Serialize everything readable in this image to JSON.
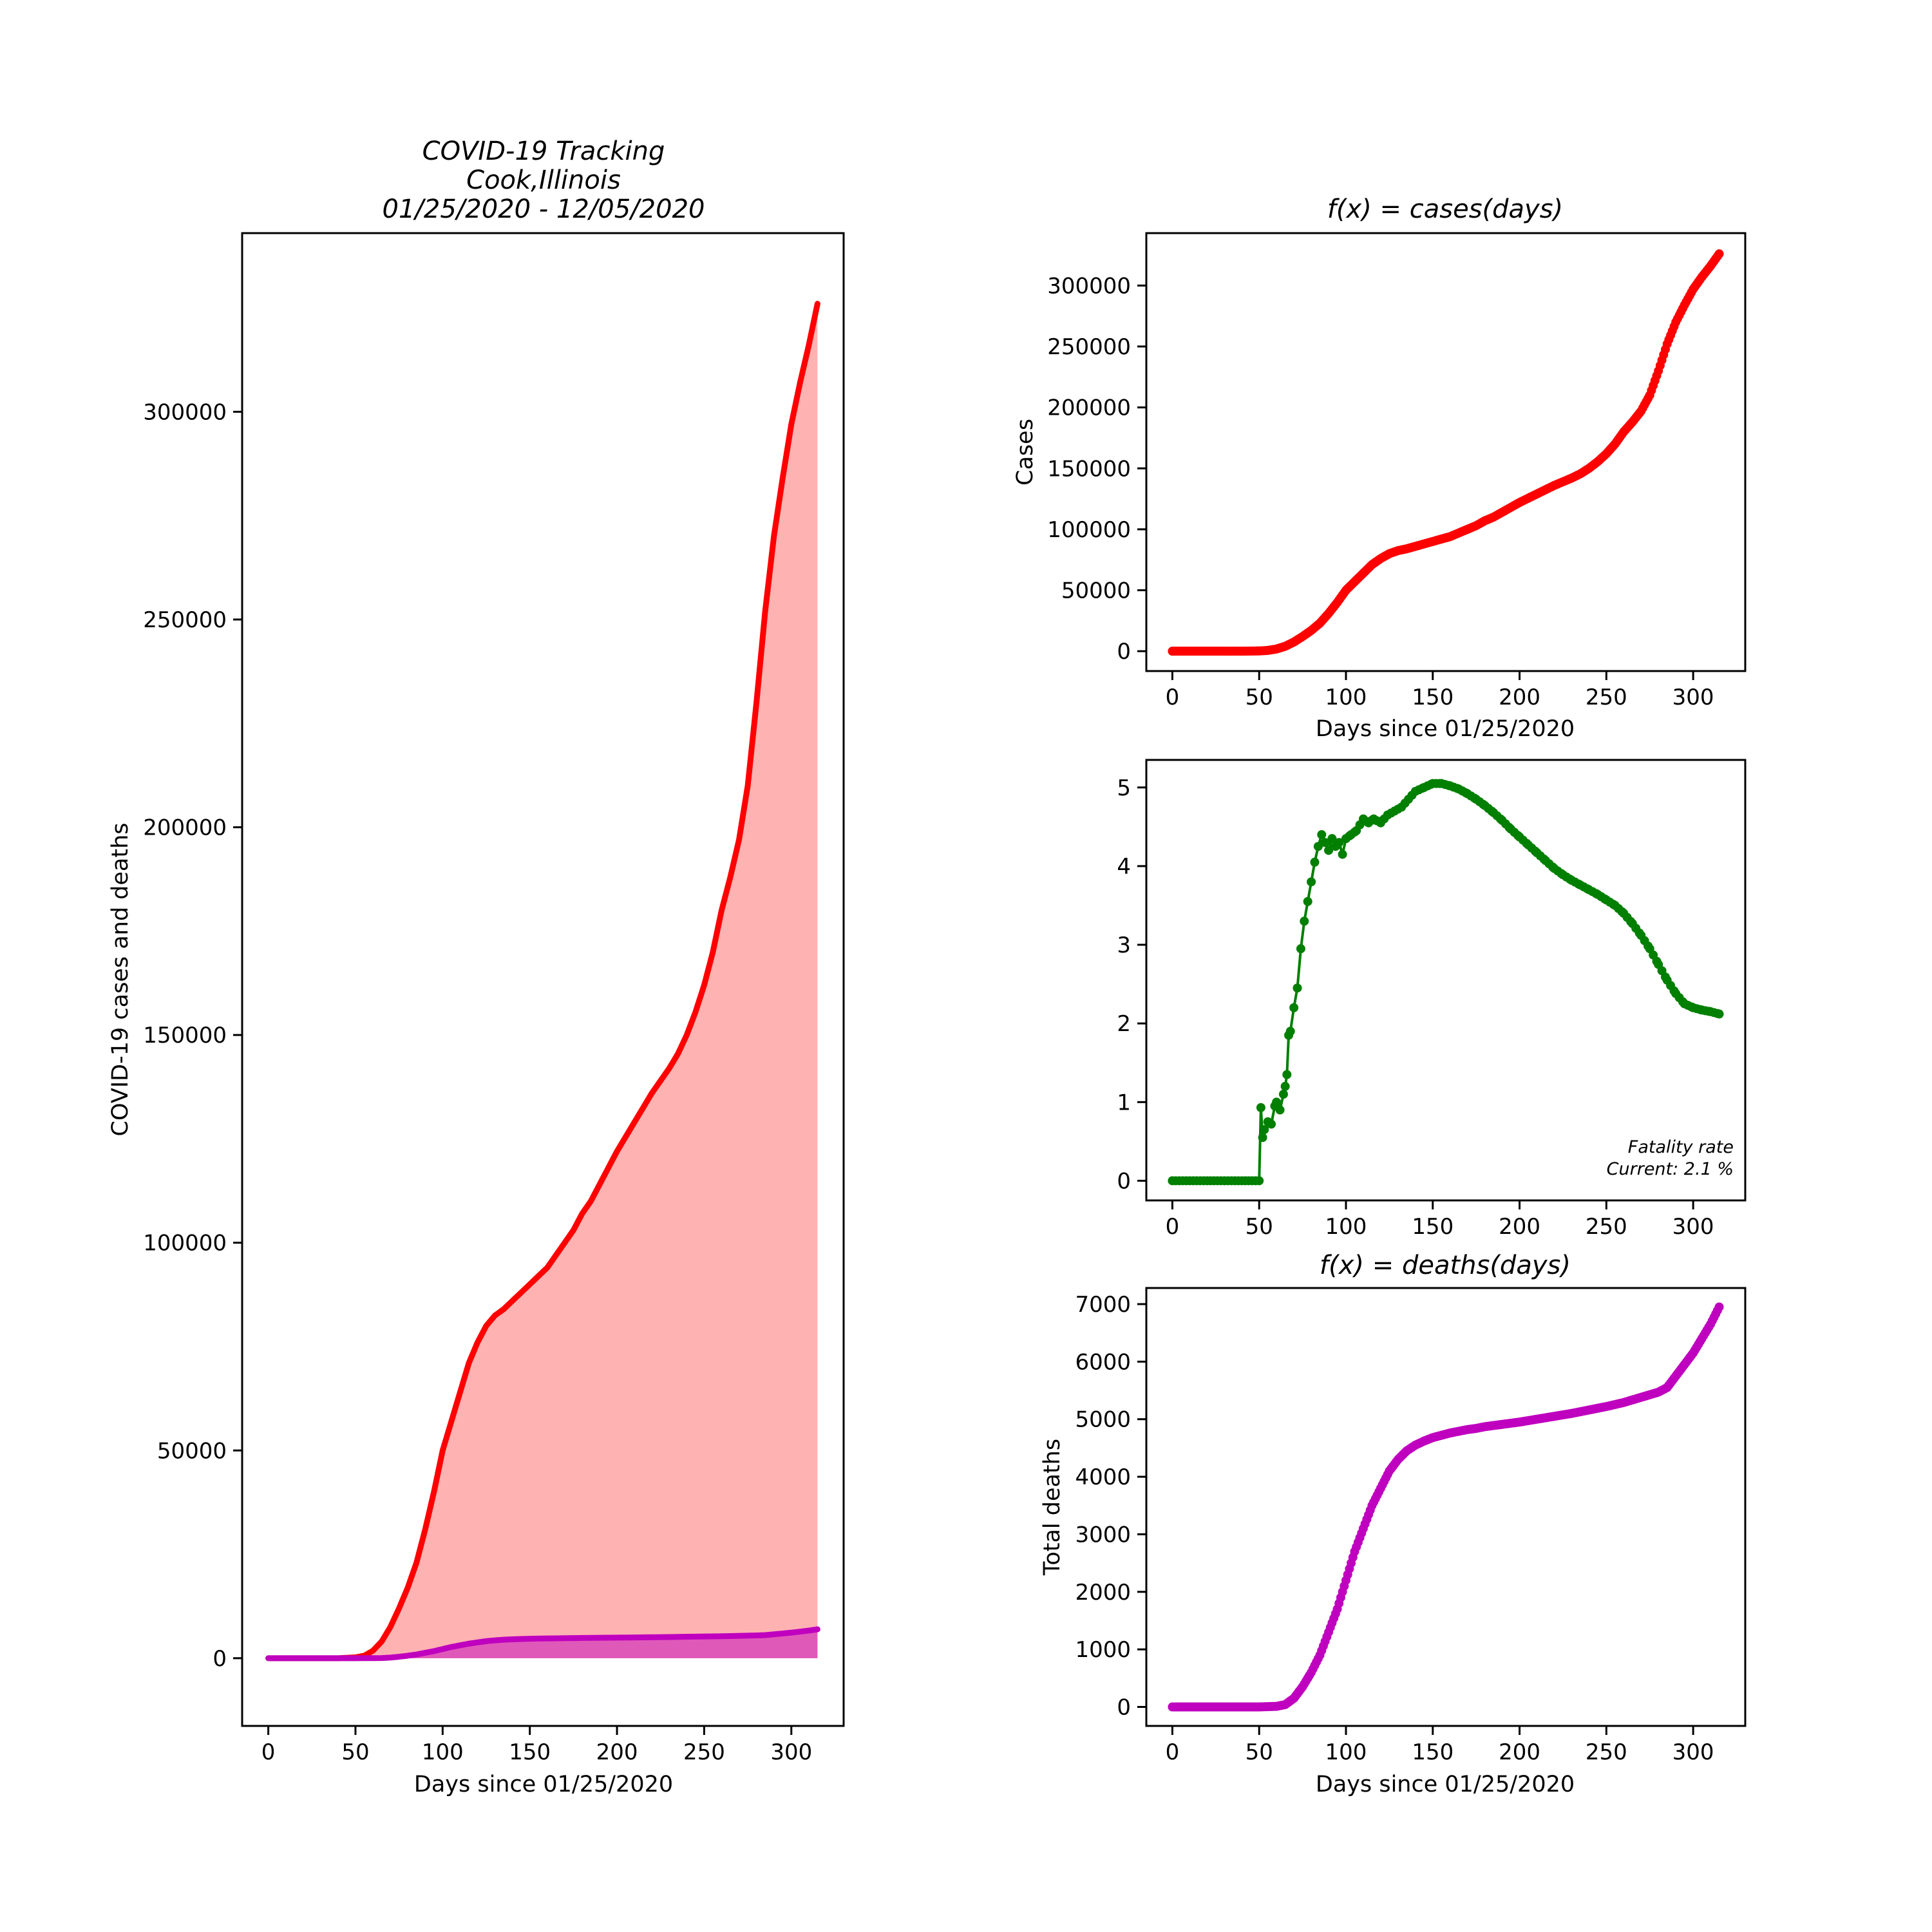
{
  "colors": {
    "cases": "#ff0000",
    "cases_fill": "#ff7f7f",
    "deaths": "#bf00bf",
    "deaths_fill": "#bf00bf",
    "fatality": "#007f00",
    "axes": "#000000",
    "background": "#ffffff"
  },
  "chart_data": [
    {
      "type": "area",
      "title_lines": [
        "COVID-19 Tracking",
        "Cook,Illinois",
        "01/25/2020 - 12/05/2020"
      ],
      "xlabel": "Days since 01/25/2020",
      "ylabel": "COVID-19 cases and deaths",
      "xlim": [
        -15,
        330
      ],
      "ylim": [
        -16300,
        343000
      ],
      "xticks": [
        0,
        50,
        100,
        150,
        200,
        250,
        300
      ],
      "yticks": [
        0,
        50000,
        100000,
        150000,
        200000,
        250000,
        300000
      ],
      "grid": false,
      "series": [
        {
          "key": "cases",
          "x": [
            0,
            40,
            50,
            55,
            60,
            65,
            70,
            75,
            80,
            85,
            90,
            95,
            100,
            105,
            110,
            115,
            120,
            125,
            130,
            135,
            140,
            145,
            150,
            155,
            160,
            165,
            170,
            175,
            180,
            185,
            190,
            195,
            200,
            205,
            210,
            215,
            220,
            225,
            230,
            235,
            240,
            245,
            250,
            255,
            260,
            265,
            270,
            275,
            280,
            285,
            290,
            295,
            300,
            305,
            310,
            315
          ],
          "values": [
            0,
            0,
            200,
            600,
            1800,
            4000,
            7500,
            12000,
            17000,
            23000,
            31000,
            40000,
            50000,
            57000,
            64000,
            71000,
            76000,
            80000,
            82500,
            84000,
            86000,
            88000,
            90000,
            92000,
            94000,
            97000,
            100000,
            103000,
            107000,
            110000,
            114000,
            118000,
            122000,
            125500,
            129000,
            132500,
            136000,
            139000,
            142000,
            145500,
            150000,
            155500,
            162000,
            170000,
            180000,
            188000,
            197000,
            210000,
            230000,
            252000,
            270000,
            284000,
            297000,
            307000,
            316000,
            326000
          ]
        },
        {
          "key": "deaths",
          "x": [
            0,
            50,
            55,
            60,
            65,
            70,
            75,
            80,
            85,
            90,
            95,
            100,
            105,
            110,
            115,
            120,
            125,
            130,
            135,
            140,
            145,
            150,
            155,
            160,
            165,
            170,
            175,
            180,
            185,
            190,
            195,
            200,
            210,
            220,
            230,
            240,
            250,
            260,
            270,
            280,
            285,
            290,
            295,
            300,
            305,
            310,
            315
          ],
          "values": [
            0,
            0,
            5,
            10,
            40,
            150,
            350,
            600,
            900,
            1300,
            1700,
            2200,
            2700,
            3100,
            3500,
            3800,
            4100,
            4300,
            4450,
            4550,
            4620,
            4680,
            4720,
            4760,
            4790,
            4820,
            4840,
            4870,
            4890,
            4910,
            4930,
            4950,
            5000,
            5050,
            5100,
            5160,
            5220,
            5290,
            5380,
            5470,
            5550,
            5750,
            5950,
            6150,
            6400,
            6650,
            6950
          ]
        }
      ]
    },
    {
      "type": "scatter",
      "title": "f(x) = cases(days)",
      "xlabel": "Days since 01/25/2020",
      "ylabel": "Cases",
      "xlim": [
        -15,
        330
      ],
      "ylim": [
        -16300,
        343000
      ],
      "xticks": [
        0,
        50,
        100,
        150,
        200,
        250,
        300
      ],
      "yticks": [
        0,
        50000,
        100000,
        150000,
        200000,
        250000,
        300000
      ],
      "grid": false,
      "series_key": "cases"
    },
    {
      "type": "line",
      "title": "",
      "xlabel": "",
      "ylabel": "",
      "xlim": [
        -15,
        330
      ],
      "ylim": [
        -0.25,
        5.35
      ],
      "xticks": [
        0,
        50,
        100,
        150,
        200,
        250,
        300
      ],
      "yticks": [
        0,
        1,
        2,
        3,
        4,
        5
      ],
      "grid": false,
      "annotation": [
        "Fatality rate",
        "Current: 2.1 %"
      ],
      "x": [
        0,
        10,
        20,
        30,
        40,
        50,
        51,
        52,
        53,
        55,
        57,
        59,
        60,
        62,
        64,
        65,
        66,
        67,
        68,
        70,
        72,
        74,
        76,
        78,
        80,
        82,
        84,
        86,
        88,
        90,
        92,
        94,
        96,
        98,
        100,
        103,
        106,
        110,
        113,
        116,
        120,
        124,
        128,
        132,
        136,
        140,
        145,
        150,
        155,
        160,
        165,
        170,
        175,
        180,
        185,
        190,
        195,
        200,
        205,
        210,
        215,
        220,
        225,
        230,
        235,
        240,
        245,
        250,
        255,
        260,
        265,
        270,
        275,
        280,
        285,
        290,
        295,
        300,
        305,
        310,
        315
      ],
      "values": [
        0,
        0,
        0,
        0,
        0,
        0,
        0.93,
        0.55,
        0.65,
        0.75,
        0.72,
        0.95,
        1.0,
        0.9,
        1.1,
        1.2,
        1.35,
        1.85,
        1.9,
        2.2,
        2.45,
        2.95,
        3.3,
        3.55,
        3.8,
        4.05,
        4.25,
        4.4,
        4.3,
        4.2,
        4.35,
        4.25,
        4.3,
        4.15,
        4.35,
        4.4,
        4.45,
        4.6,
        4.55,
        4.6,
        4.55,
        4.65,
        4.7,
        4.75,
        4.85,
        4.95,
        5.0,
        5.05,
        5.05,
        5.02,
        4.98,
        4.92,
        4.85,
        4.77,
        4.68,
        4.58,
        4.47,
        4.37,
        4.27,
        4.17,
        4.07,
        3.97,
        3.89,
        3.82,
        3.76,
        3.7,
        3.64,
        3.57,
        3.5,
        3.4,
        3.27,
        3.12,
        2.95,
        2.75,
        2.55,
        2.38,
        2.25,
        2.2,
        2.17,
        2.15,
        2.12
      ]
    },
    {
      "type": "scatter",
      "title": "f(x) = deaths(days)",
      "xlabel": "Days since 01/25/2020",
      "ylabel": "Total deaths",
      "xlim": [
        -15,
        330
      ],
      "ylim": [
        -330,
        7280
      ],
      "xticks": [
        0,
        50,
        100,
        150,
        200,
        250,
        300
      ],
      "yticks": [
        0,
        1000,
        2000,
        3000,
        4000,
        5000,
        6000,
        7000
      ],
      "grid": false,
      "series_key": "deaths"
    }
  ]
}
